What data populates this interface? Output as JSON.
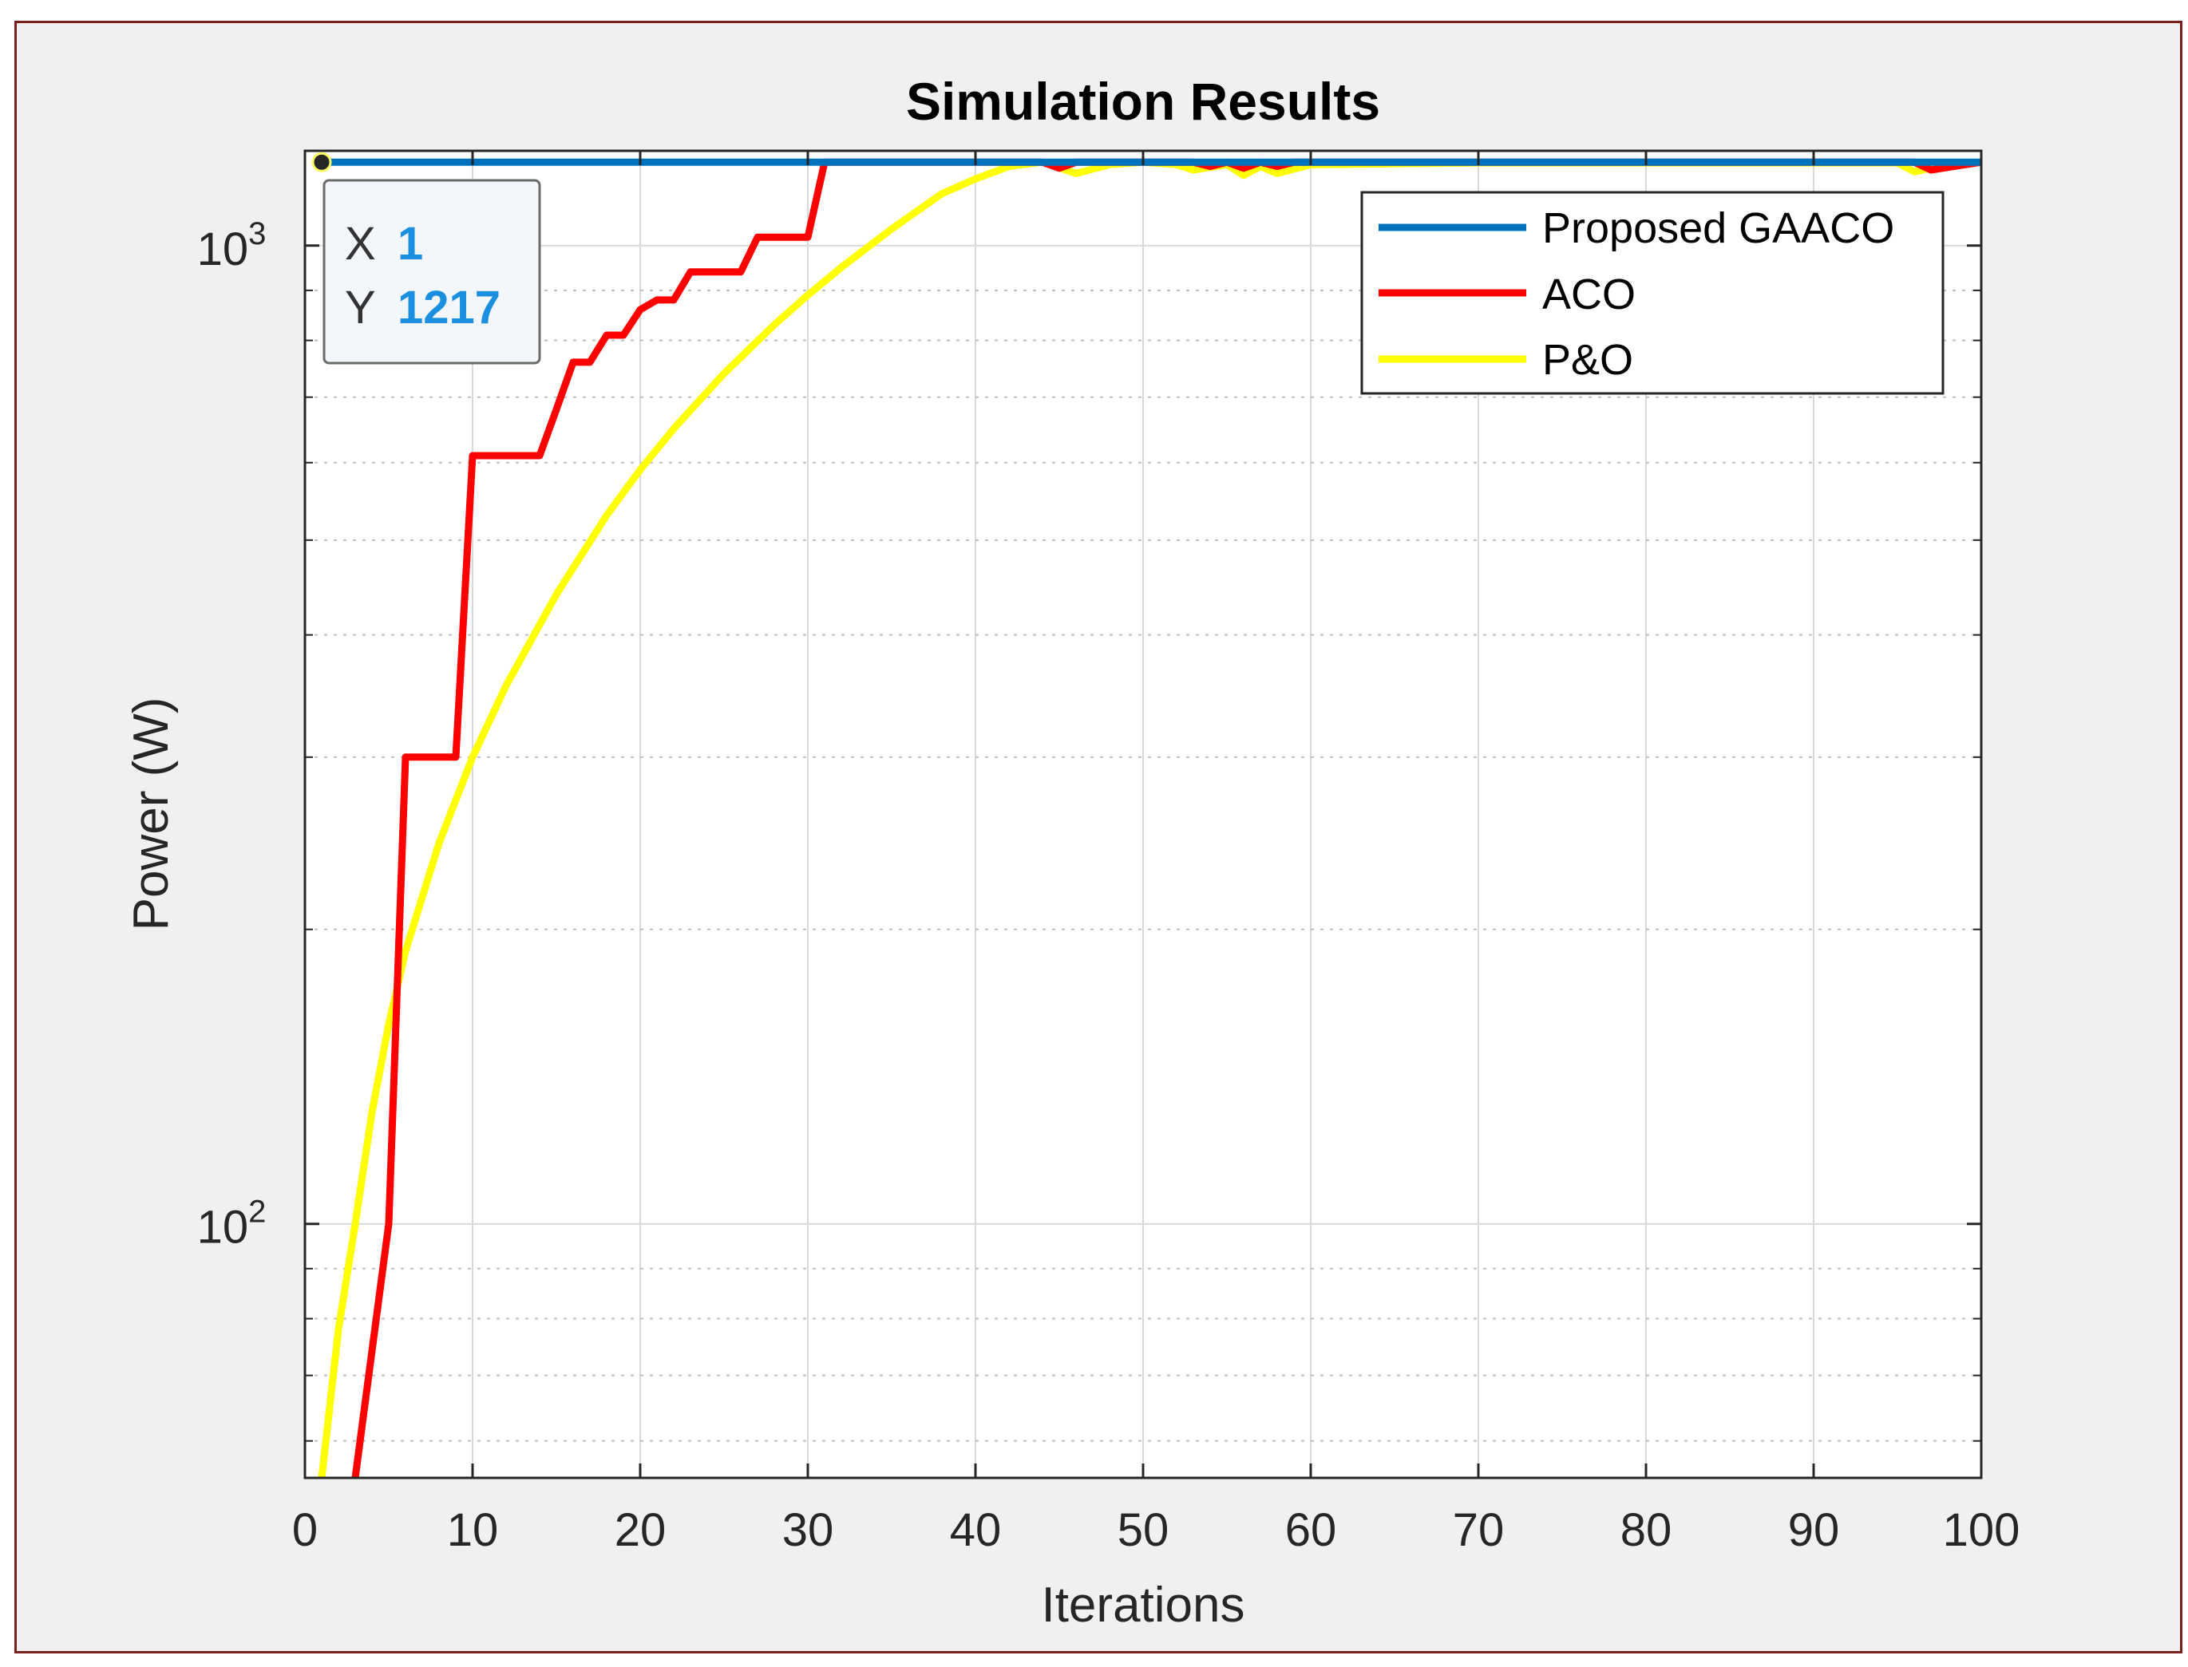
{
  "chart_data": {
    "type": "line",
    "title": "Simulation Results",
    "xlabel": "Iterations",
    "ylabel": "Power (W)",
    "xlim": [
      0,
      100
    ],
    "ylim": [
      55,
      1250
    ],
    "yscale": "log",
    "grid": true,
    "legend_position": "top-right",
    "x_ticks": [
      "0",
      "10",
      "20",
      "30",
      "40",
      "50",
      "60",
      "70",
      "80",
      "90",
      "100"
    ],
    "y_tick_labels": [
      {
        "value": 1000,
        "base": "10",
        "exp": "3"
      },
      {
        "value": 100,
        "base": "10",
        "exp": "2"
      }
    ],
    "series": [
      {
        "name": "Proposed GAACO",
        "color": "#0072bd",
        "x": [
          1,
          100
        ],
        "y": [
          1217,
          1217
        ]
      },
      {
        "name": "ACO",
        "color": "#ff0000",
        "x": [
          3,
          5,
          6,
          9,
          10,
          14,
          15,
          16,
          17,
          18,
          19,
          20,
          21,
          22,
          23,
          26,
          27,
          30,
          31,
          44,
          45,
          46,
          47,
          50,
          53,
          54,
          55,
          56,
          57,
          58,
          59,
          96,
          97,
          100
        ],
        "y": [
          55,
          100,
          300,
          300,
          610,
          610,
          680,
          760,
          760,
          810,
          810,
          860,
          880,
          880,
          940,
          940,
          1020,
          1020,
          1217,
          1217,
          1200,
          1217,
          1217,
          1217,
          1217,
          1205,
          1217,
          1200,
          1217,
          1205,
          1217,
          1217,
          1195,
          1217
        ]
      },
      {
        "name": "P&O",
        "color": "#ffff00",
        "x": [
          1,
          2,
          3,
          4,
          5,
          6,
          8,
          10,
          12,
          15,
          18,
          20,
          22,
          25,
          28,
          30,
          32,
          35,
          38,
          40,
          42,
          44,
          46,
          48,
          50,
          52,
          53,
          55,
          56,
          57,
          58,
          60,
          70,
          80,
          90,
          95,
          96,
          98,
          100
        ],
        "y": [
          55,
          78,
          100,
          130,
          160,
          190,
          245,
          300,
          355,
          440,
          530,
          590,
          650,
          740,
          830,
          890,
          950,
          1040,
          1130,
          1170,
          1205,
          1217,
          1185,
          1210,
          1217,
          1210,
          1195,
          1210,
          1180,
          1205,
          1185,
          1210,
          1215,
          1215,
          1215,
          1215,
          1190,
          1210,
          1217
        ]
      }
    ],
    "datatip": {
      "x_label": "X",
      "x_value": "1",
      "y_label": "Y",
      "y_value": "1217"
    }
  }
}
